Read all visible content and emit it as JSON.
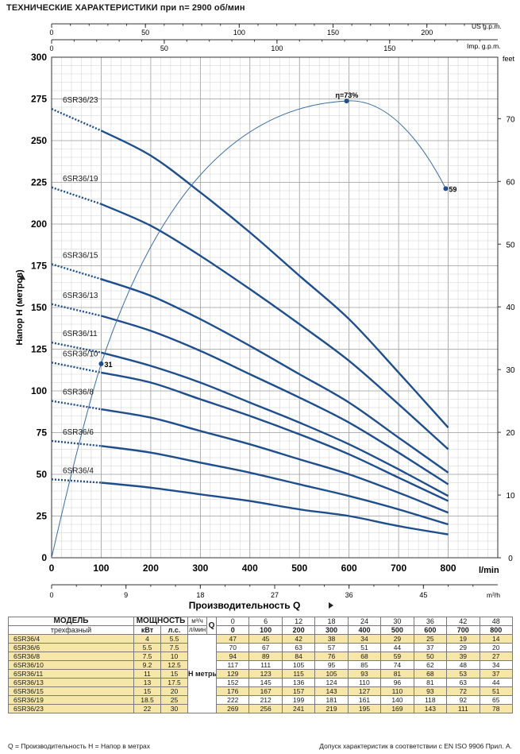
{
  "header": {
    "title": "ТЕХНИЧЕСКИЕ ХАРАКТЕРИСТИКИ при n= 2900 об/мин"
  },
  "chart_data": {
    "type": "line",
    "title": "ТЕХНИЧЕСКИЕ ХАРАКТЕРИСТИКИ при n= 2900 об/мин",
    "xlabel": "l/min",
    "xlabel_bottom": "Производительность  Q",
    "ylabel": "Напор  H   (метров)",
    "ylabel_right": "feet",
    "xlim": [
      0,
      900
    ],
    "ylim": [
      0,
      300
    ],
    "x_ticks": [
      0,
      100,
      200,
      300,
      400,
      500,
      600,
      700,
      800
    ],
    "y_ticks": [
      0,
      25,
      50,
      75,
      100,
      125,
      150,
      175,
      200,
      225,
      250,
      275,
      300
    ],
    "feet_ticks": [
      0,
      10,
      20,
      30,
      40,
      50,
      60,
      70
    ],
    "m3h_unit": "m³/h",
    "m3h_ticks": [
      0,
      9,
      18,
      27,
      36,
      45
    ],
    "usgpm_unit": "US g.p.m.",
    "usgpm_ticks": [
      0,
      50,
      100,
      150,
      200
    ],
    "impgpm_unit": "Imp. g.p.m.",
    "impgpm_ticks": [
      0,
      50,
      100,
      150
    ],
    "grid": true,
    "series": [
      {
        "name": "6SR36/4",
        "x": [
          0,
          100,
          200,
          300,
          400,
          500,
          600,
          700,
          800
        ],
        "y": [
          47,
          45,
          42,
          38,
          34,
          29,
          25,
          19,
          14
        ]
      },
      {
        "name": "6SR36/6",
        "x": [
          0,
          100,
          200,
          300,
          400,
          500,
          600,
          700,
          800
        ],
        "y": [
          70,
          67,
          63,
          57,
          51,
          44,
          37,
          29,
          20
        ]
      },
      {
        "name": "6SR36/8",
        "x": [
          0,
          100,
          200,
          300,
          400,
          500,
          600,
          700,
          800
        ],
        "y": [
          94,
          89,
          84,
          76,
          68,
          59,
          50,
          39,
          27
        ]
      },
      {
        "name": "6SR36/10",
        "x": [
          0,
          100,
          200,
          300,
          400,
          500,
          600,
          700,
          800
        ],
        "y": [
          117,
          111,
          105,
          95,
          85,
          74,
          62,
          48,
          34
        ]
      },
      {
        "name": "6SR36/11",
        "x": [
          0,
          100,
          200,
          300,
          400,
          500,
          600,
          700,
          800
        ],
        "y": [
          129,
          123,
          115,
          105,
          93,
          81,
          68,
          53,
          37
        ]
      },
      {
        "name": "6SR36/13",
        "x": [
          0,
          100,
          200,
          300,
          400,
          500,
          600,
          700,
          800
        ],
        "y": [
          152,
          145,
          136,
          124,
          110,
          96,
          81,
          63,
          44
        ]
      },
      {
        "name": "6SR36/15",
        "x": [
          0,
          100,
          200,
          300,
          400,
          500,
          600,
          700,
          800
        ],
        "y": [
          176,
          167,
          157,
          143,
          127,
          110,
          93,
          72,
          51
        ]
      },
      {
        "name": "6SR36/19",
        "x": [
          0,
          100,
          200,
          300,
          400,
          500,
          600,
          700,
          800
        ],
        "y": [
          222,
          212,
          199,
          181,
          161,
          140,
          118,
          92,
          65
        ]
      },
      {
        "name": "6SR36/23",
        "x": [
          0,
          100,
          200,
          300,
          400,
          500,
          600,
          700,
          800
        ],
        "y": [
          269,
          256,
          241,
          219,
          195,
          169,
          143,
          111,
          78
        ]
      }
    ],
    "efficiency": {
      "points": [
        {
          "x": 100,
          "y": 31,
          "label": "31"
        },
        {
          "x": 595,
          "y": 73,
          "label": "η=73%"
        },
        {
          "x": 795,
          "y": 59,
          "label": "59"
        }
      ],
      "scale_ylim": [
        0,
        80
      ]
    }
  },
  "table": {
    "model_header": "МОДЕЛЬ",
    "model_sub": "трехфазный",
    "power_header": "МОЩНОСТЬ",
    "kw_label": "кВт",
    "hp_label": "л.с.",
    "q_label": "Q",
    "m3h_label": "м³/ч",
    "lmin_label": "л/мин",
    "h_label": "H метры",
    "q_m3h": [
      "0",
      "6",
      "12",
      "18",
      "24",
      "30",
      "36",
      "42",
      "48"
    ],
    "q_lmin": [
      "0",
      "100",
      "200",
      "300",
      "400",
      "500",
      "600",
      "700",
      "800"
    ],
    "rows": [
      {
        "model": "6SR36/4",
        "kw": "4",
        "hp": "5.5",
        "h": [
          "47",
          "45",
          "42",
          "38",
          "34",
          "29",
          "25",
          "19",
          "14"
        ]
      },
      {
        "model": "6SR36/6",
        "kw": "5.5",
        "hp": "7.5",
        "h": [
          "70",
          "67",
          "63",
          "57",
          "51",
          "44",
          "37",
          "29",
          "20"
        ]
      },
      {
        "model": "6SR36/8",
        "kw": "7.5",
        "hp": "10",
        "h": [
          "94",
          "89",
          "84",
          "76",
          "68",
          "59",
          "50",
          "39",
          "27"
        ]
      },
      {
        "model": "6SR36/10",
        "kw": "9.2",
        "hp": "12.5",
        "h": [
          "117",
          "111",
          "105",
          "95",
          "85",
          "74",
          "62",
          "48",
          "34"
        ]
      },
      {
        "model": "6SR36/11",
        "kw": "11",
        "hp": "15",
        "h": [
          "129",
          "123",
          "115",
          "105",
          "93",
          "81",
          "68",
          "53",
          "37"
        ]
      },
      {
        "model": "6SR36/13",
        "kw": "13",
        "hp": "17.5",
        "h": [
          "152",
          "145",
          "136",
          "124",
          "110",
          "96",
          "81",
          "63",
          "44"
        ]
      },
      {
        "model": "6SR36/15",
        "kw": "15",
        "hp": "20",
        "h": [
          "176",
          "167",
          "157",
          "143",
          "127",
          "110",
          "93",
          "72",
          "51"
        ]
      },
      {
        "model": "6SR36/19",
        "kw": "18.5",
        "hp": "25",
        "h": [
          "222",
          "212",
          "199",
          "181",
          "161",
          "140",
          "118",
          "92",
          "65"
        ]
      },
      {
        "model": "6SR36/23",
        "kw": "22",
        "hp": "30",
        "h": [
          "269",
          "256",
          "241",
          "219",
          "195",
          "169",
          "143",
          "111",
          "78"
        ]
      }
    ]
  },
  "footer": {
    "left": "Q = Производительность   H = Напор в метрах",
    "right": "Допуск характеристик в соответствии с EN ISO 9906 Прил.  A."
  }
}
